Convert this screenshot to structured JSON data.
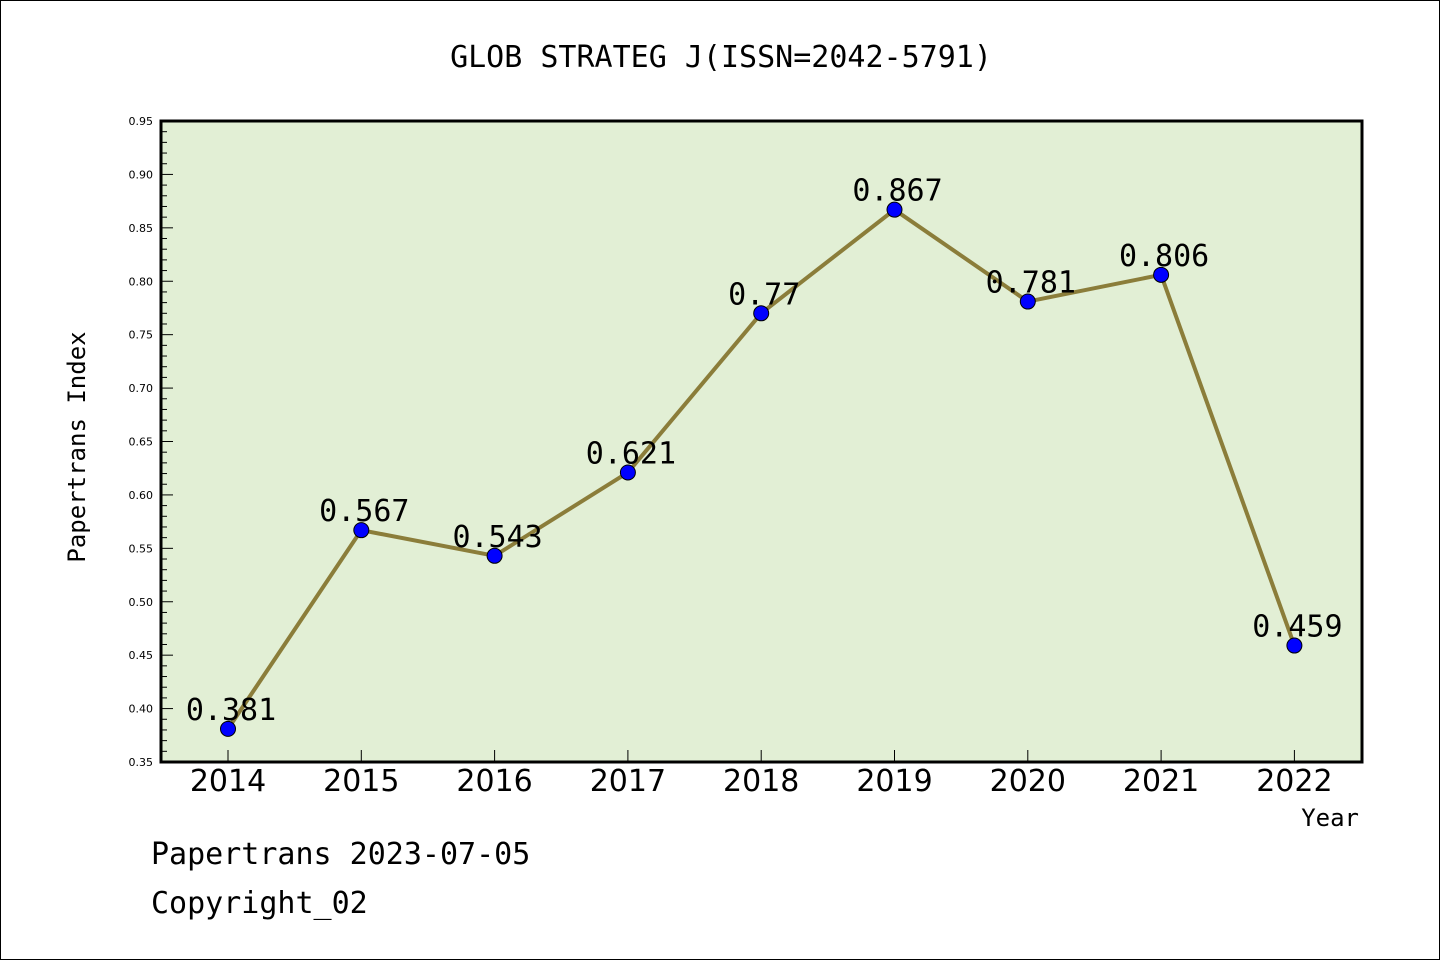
{
  "chart_data": {
    "type": "line",
    "title": "GLOB STRATEG J(ISSN=2042-5791)",
    "xlabel": "Year",
    "ylabel": "Papertrans Index",
    "categories": [
      "2014",
      "2015",
      "2016",
      "2017",
      "2018",
      "2019",
      "2020",
      "2021",
      "2022"
    ],
    "values": [
      0.381,
      0.567,
      0.543,
      0.621,
      0.77,
      0.867,
      0.781,
      0.806,
      0.459
    ],
    "data_labels": [
      "0.381",
      "0.567",
      "0.543",
      "0.621",
      "0.77",
      "0.867",
      "0.781",
      "0.806",
      "0.459"
    ],
    "ylim": [
      0.35,
      0.95
    ],
    "yticks": [
      "0.35",
      "0.40",
      "0.45",
      "0.50",
      "0.55",
      "0.60",
      "0.65",
      "0.70",
      "0.75",
      "0.80",
      "0.85",
      "0.90",
      "0.95"
    ],
    "grid": false,
    "legend": "none",
    "colors": {
      "plot_background": "#e2efd5",
      "line": "#8b7d3a",
      "marker": "#0000ff"
    }
  },
  "footer": {
    "line1": "Papertrans 2023-07-05",
    "line2": "Copyright_02"
  }
}
